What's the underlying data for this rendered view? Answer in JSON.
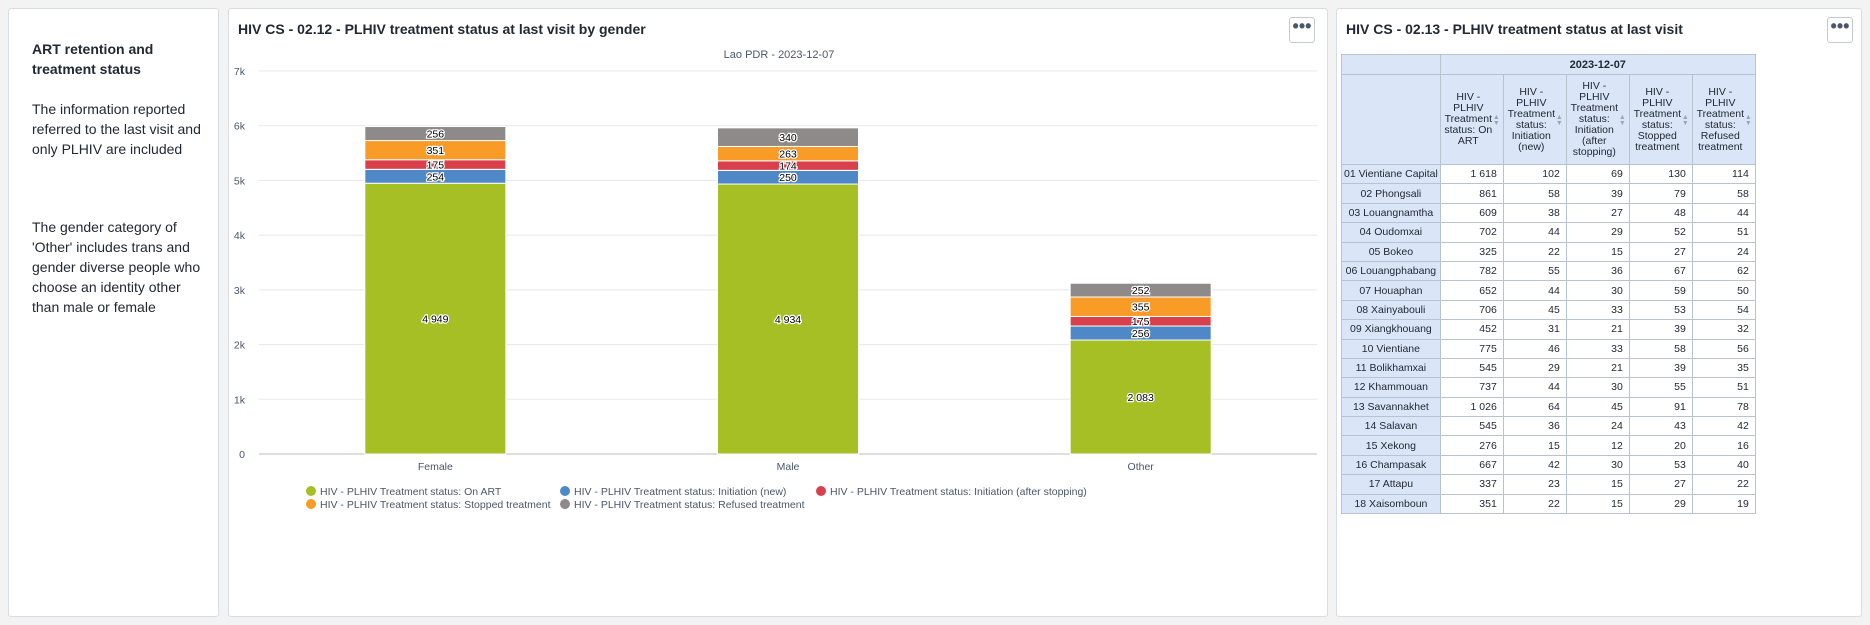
{
  "info_card": {
    "title": "ART retention and treatment status",
    "paragraph_1": "The information reported referred to the last visit and only PLHIV are included",
    "paragraph_2": "The gender category of 'Other' includes trans and gender diverse people who choose an identity other than male or female"
  },
  "chart_card": {
    "title": "HIV CS - 02.12 - PLHIV treatment status at last visit by gender",
    "menu_label": "•••"
  },
  "table_card": {
    "title": "HIV CS - 02.13 - PLHIV treatment status at last visit",
    "menu_label": "•••",
    "period": "2023-12-07",
    "columns": [
      "HIV - PLHIV Treatment status: On ART",
      "HIV - PLHIV Treatment status: Initiation (new)",
      "HIV - PLHIV Treatment status: Initiation (after stopping)",
      "HIV - PLHIV Treatment status: Stopped treatment",
      "HIV - PLHIV Treatment status: Refused treatment"
    ],
    "rows": [
      {
        "name": "01 Vientiane Capital",
        "values": [
          "1 618",
          "102",
          "69",
          "130",
          "114"
        ]
      },
      {
        "name": "02 Phongsali",
        "values": [
          "861",
          "58",
          "39",
          "79",
          "58"
        ]
      },
      {
        "name": "03 Louangnamtha",
        "values": [
          "609",
          "38",
          "27",
          "48",
          "44"
        ]
      },
      {
        "name": "04 Oudomxai",
        "values": [
          "702",
          "44",
          "29",
          "52",
          "51"
        ]
      },
      {
        "name": "05 Bokeo",
        "values": [
          "325",
          "22",
          "15",
          "27",
          "24"
        ]
      },
      {
        "name": "06 Louangphabang",
        "values": [
          "782",
          "55",
          "36",
          "67",
          "62"
        ]
      },
      {
        "name": "07 Houaphan",
        "values": [
          "652",
          "44",
          "30",
          "59",
          "50"
        ]
      },
      {
        "name": "08 Xainyabouli",
        "values": [
          "706",
          "45",
          "33",
          "53",
          "54"
        ]
      },
      {
        "name": "09 Xiangkhouang",
        "values": [
          "452",
          "31",
          "21",
          "39",
          "32"
        ]
      },
      {
        "name": "10 Vientiane",
        "values": [
          "775",
          "46",
          "33",
          "58",
          "56"
        ]
      },
      {
        "name": "11 Bolikhamxai",
        "values": [
          "545",
          "29",
          "21",
          "39",
          "35"
        ]
      },
      {
        "name": "12 Khammouan",
        "values": [
          "737",
          "44",
          "30",
          "55",
          "51"
        ]
      },
      {
        "name": "13 Savannakhet",
        "values": [
          "1 026",
          "64",
          "45",
          "91",
          "78"
        ]
      },
      {
        "name": "14 Salavan",
        "values": [
          "545",
          "36",
          "24",
          "43",
          "42"
        ]
      },
      {
        "name": "15 Xekong",
        "values": [
          "276",
          "15",
          "12",
          "20",
          "16"
        ]
      },
      {
        "name": "16 Champasak",
        "values": [
          "667",
          "42",
          "30",
          "53",
          "40"
        ]
      },
      {
        "name": "17 Attapu",
        "values": [
          "337",
          "23",
          "15",
          "27",
          "22"
        ]
      },
      {
        "name": "18 Xaisomboun",
        "values": [
          "351",
          "22",
          "15",
          "29",
          "19"
        ]
      }
    ]
  },
  "chart_data": {
    "type": "bar",
    "stacked": true,
    "title": "Lao PDR - 2023-12-07",
    "categories": [
      "Female",
      "Male",
      "Other"
    ],
    "ylim": [
      0,
      7000
    ],
    "yticks": [
      0,
      1000,
      2000,
      3000,
      4000,
      5000,
      6000,
      7000
    ],
    "ytick_labels": [
      "0",
      "1k",
      "2k",
      "3k",
      "4k",
      "5k",
      "6k",
      "7k"
    ],
    "series": [
      {
        "name": "HIV - PLHIV Treatment status: On ART",
        "color": "#a5bf25",
        "values": [
          4949,
          4934,
          2083
        ],
        "labels": [
          "4 949",
          "4 934",
          "2 083"
        ]
      },
      {
        "name": "HIV - PLHIV Treatment status: Initiation (new)",
        "color": "#4f88c6",
        "values": [
          254,
          250,
          256
        ],
        "labels": [
          "254",
          "250",
          "256"
        ]
      },
      {
        "name": "HIV - PLHIV Treatment status: Initiation (after stopping)",
        "color": "#d8404c",
        "values": [
          175,
          174,
          175
        ],
        "labels": [
          "175",
          "174",
          "175"
        ]
      },
      {
        "name": "HIV - PLHIV Treatment status: Stopped treatment",
        "color": "#f99b27",
        "values": [
          351,
          263,
          355
        ],
        "labels": [
          "351",
          "263",
          "355"
        ]
      },
      {
        "name": "HIV - PLHIV Treatment status: Refused treatment",
        "color": "#8f8a8a",
        "values": [
          256,
          340,
          252
        ],
        "labels": [
          "256",
          "340",
          "252"
        ]
      }
    ],
    "legend_position": "bottom",
    "grid": true
  }
}
